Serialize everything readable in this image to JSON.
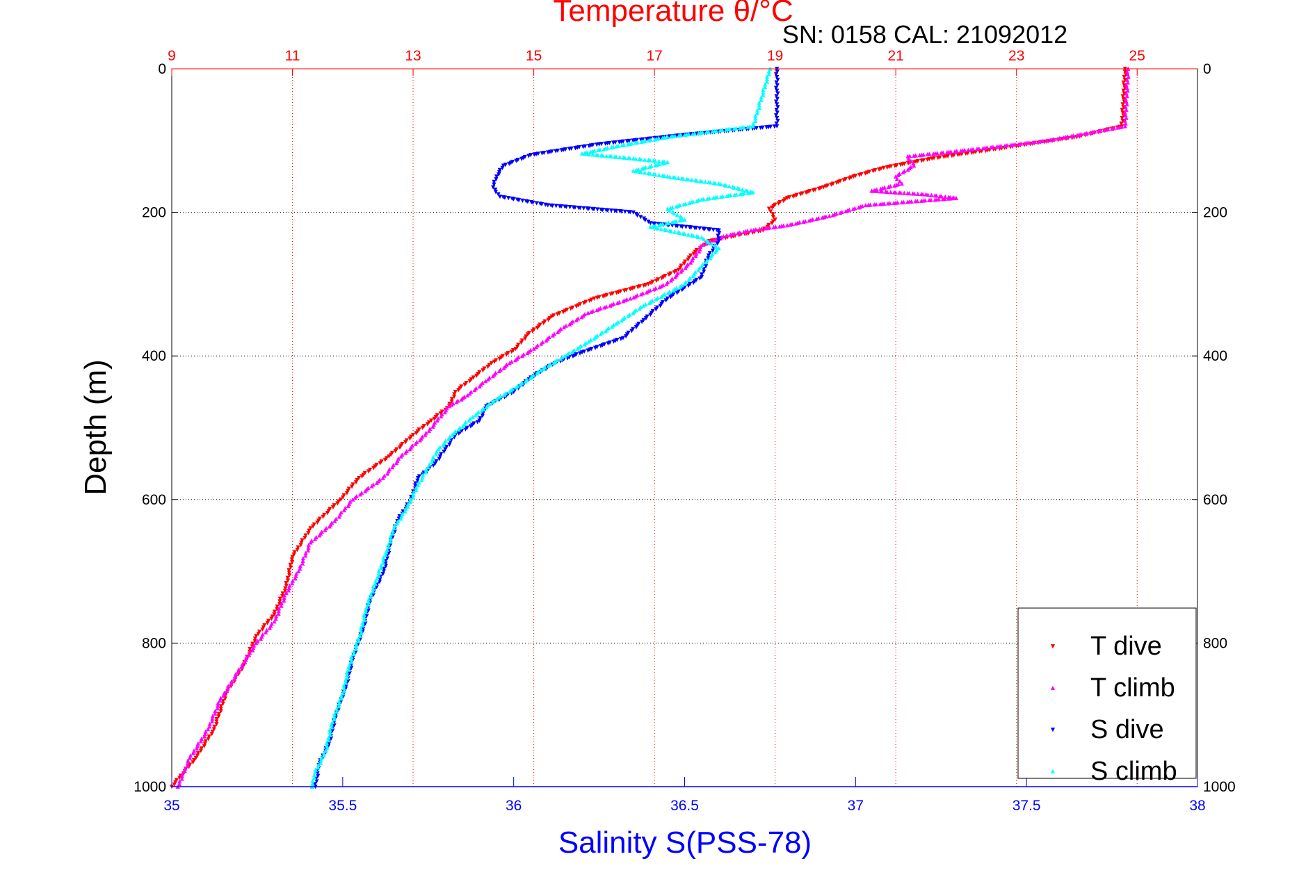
{
  "chart_data": {
    "type": "scatter",
    "title": "Temperature θ/°C",
    "subtitle": "SN: 0158  CAL: 21092012",
    "ylabel": "Depth (m)",
    "xlabel": "Salinity S(PSS-78)",
    "y_axis": {
      "range": [
        0,
        1000
      ],
      "inverted": true,
      "ticks": [
        "0",
        "200",
        "400",
        "600",
        "800",
        "1000"
      ]
    },
    "x_axis_bottom": {
      "name": "Salinity",
      "range": [
        35,
        38
      ],
      "ticks": [
        "35",
        "35.5",
        "36",
        "36.5",
        "37",
        "37.5",
        "38"
      ],
      "color": "#0000ff"
    },
    "x_axis_top": {
      "name": "Temperature",
      "range": [
        9,
        26
      ],
      "ticks": [
        "9",
        "11",
        "13",
        "15",
        "17",
        "19",
        "21",
        "23",
        "25"
      ],
      "color": "#ff0000"
    },
    "grid": {
      "y": "dotted black",
      "x_top": "dotted red"
    },
    "legend": {
      "position": "bottom-right"
    },
    "series": [
      {
        "name": "T dive",
        "axis": "temperature",
        "color": "#ff0000",
        "marker": "triangle-down",
        "points": [
          [
            24.8,
            0
          ],
          [
            24.75,
            80
          ],
          [
            24.0,
            95
          ],
          [
            22.8,
            110
          ],
          [
            21.6,
            125
          ],
          [
            20.8,
            138
          ],
          [
            20.3,
            150
          ],
          [
            19.8,
            165
          ],
          [
            19.2,
            180
          ],
          [
            18.9,
            195
          ],
          [
            19.0,
            210
          ],
          [
            18.8,
            225
          ],
          [
            17.9,
            240
          ],
          [
            17.6,
            260
          ],
          [
            17.4,
            280
          ],
          [
            16.9,
            300
          ],
          [
            16.0,
            320
          ],
          [
            15.3,
            345
          ],
          [
            14.9,
            370
          ],
          [
            14.7,
            390
          ],
          [
            14.3,
            410
          ],
          [
            14.0,
            430
          ],
          [
            13.7,
            450
          ],
          [
            13.6,
            470
          ],
          [
            13.3,
            490
          ],
          [
            13.0,
            510
          ],
          [
            12.6,
            540
          ],
          [
            12.1,
            570
          ],
          [
            11.8,
            600
          ],
          [
            11.3,
            640
          ],
          [
            11.0,
            680
          ],
          [
            10.9,
            720
          ],
          [
            10.7,
            760
          ],
          [
            10.4,
            790
          ],
          [
            10.2,
            830
          ],
          [
            9.9,
            870
          ],
          [
            9.7,
            920
          ],
          [
            9.4,
            960
          ],
          [
            9.0,
            1000
          ]
        ]
      },
      {
        "name": "T climb",
        "axis": "temperature",
        "color": "#ff00ff",
        "marker": "triangle-up",
        "points": [
          [
            24.85,
            0
          ],
          [
            24.8,
            80
          ],
          [
            23.5,
            100
          ],
          [
            22.2,
            113
          ],
          [
            21.2,
            122
          ],
          [
            21.3,
            135
          ],
          [
            21.0,
            150
          ],
          [
            21.1,
            160
          ],
          [
            20.6,
            170
          ],
          [
            21.5,
            175
          ],
          [
            22.0,
            180
          ],
          [
            20.5,
            190
          ],
          [
            19.9,
            205
          ],
          [
            19.2,
            218
          ],
          [
            18.6,
            225
          ],
          [
            18.2,
            232
          ],
          [
            17.8,
            245
          ],
          [
            17.6,
            270
          ],
          [
            17.2,
            300
          ],
          [
            16.6,
            320
          ],
          [
            15.9,
            340
          ],
          [
            15.5,
            360
          ],
          [
            15.0,
            390
          ],
          [
            14.6,
            410
          ],
          [
            14.2,
            435
          ],
          [
            13.9,
            455
          ],
          [
            13.6,
            470
          ],
          [
            13.4,
            490
          ],
          [
            13.2,
            510
          ],
          [
            12.8,
            540
          ],
          [
            12.5,
            570
          ],
          [
            12.0,
            600
          ],
          [
            11.7,
            630
          ],
          [
            11.3,
            660
          ],
          [
            11.1,
            700
          ],
          [
            10.9,
            730
          ],
          [
            10.7,
            770
          ],
          [
            10.4,
            800
          ],
          [
            10.1,
            840
          ],
          [
            9.8,
            880
          ],
          [
            9.6,
            920
          ],
          [
            9.3,
            960
          ],
          [
            9.1,
            1000
          ]
        ]
      },
      {
        "name": "S dive",
        "axis": "salinity",
        "color": "#0000ff",
        "marker": "triangle-down",
        "points": [
          [
            36.77,
            0
          ],
          [
            36.77,
            80
          ],
          [
            36.5,
            92
          ],
          [
            36.25,
            105
          ],
          [
            36.05,
            120
          ],
          [
            35.97,
            135
          ],
          [
            35.95,
            150
          ],
          [
            35.94,
            165
          ],
          [
            35.96,
            178
          ],
          [
            36.1,
            190
          ],
          [
            36.35,
            200
          ],
          [
            36.4,
            215
          ],
          [
            36.6,
            225
          ],
          [
            36.6,
            240
          ],
          [
            36.57,
            260
          ],
          [
            36.55,
            290
          ],
          [
            36.45,
            320
          ],
          [
            36.38,
            350
          ],
          [
            36.32,
            375
          ],
          [
            36.2,
            395
          ],
          [
            36.12,
            410
          ],
          [
            36.05,
            430
          ],
          [
            36.0,
            450
          ],
          [
            35.92,
            470
          ],
          [
            35.9,
            490
          ],
          [
            35.83,
            510
          ],
          [
            35.8,
            530
          ],
          [
            35.77,
            550
          ],
          [
            35.72,
            570
          ],
          [
            35.7,
            600
          ],
          [
            35.66,
            630
          ],
          [
            35.64,
            660
          ],
          [
            35.62,
            700
          ],
          [
            35.58,
            740
          ],
          [
            35.56,
            780
          ],
          [
            35.53,
            820
          ],
          [
            35.51,
            860
          ],
          [
            35.48,
            900
          ],
          [
            35.46,
            940
          ],
          [
            35.43,
            970
          ],
          [
            35.42,
            1000
          ]
        ]
      },
      {
        "name": "S climb",
        "axis": "salinity",
        "color": "#00ffff",
        "marker": "triangle-up",
        "points": [
          [
            36.75,
            0
          ],
          [
            36.7,
            80
          ],
          [
            36.45,
            95
          ],
          [
            36.3,
            108
          ],
          [
            36.2,
            118
          ],
          [
            36.35,
            125
          ],
          [
            36.45,
            130
          ],
          [
            36.35,
            142
          ],
          [
            36.45,
            150
          ],
          [
            36.6,
            160
          ],
          [
            36.7,
            172
          ],
          [
            36.55,
            182
          ],
          [
            36.45,
            195
          ],
          [
            36.5,
            210
          ],
          [
            36.4,
            220
          ],
          [
            36.55,
            235
          ],
          [
            36.6,
            250
          ],
          [
            36.55,
            275
          ],
          [
            36.5,
            300
          ],
          [
            36.38,
            330
          ],
          [
            36.3,
            355
          ],
          [
            36.22,
            380
          ],
          [
            36.15,
            400
          ],
          [
            36.08,
            420
          ],
          [
            36.02,
            440
          ],
          [
            35.95,
            460
          ],
          [
            35.88,
            485
          ],
          [
            35.82,
            510
          ],
          [
            35.78,
            530
          ],
          [
            35.75,
            555
          ],
          [
            35.72,
            580
          ],
          [
            35.69,
            610
          ],
          [
            35.65,
            640
          ],
          [
            35.63,
            670
          ],
          [
            35.6,
            710
          ],
          [
            35.57,
            750
          ],
          [
            35.55,
            790
          ],
          [
            35.52,
            830
          ],
          [
            35.5,
            870
          ],
          [
            35.47,
            910
          ],
          [
            35.45,
            950
          ],
          [
            35.42,
            980
          ],
          [
            35.41,
            1000
          ]
        ]
      }
    ]
  }
}
